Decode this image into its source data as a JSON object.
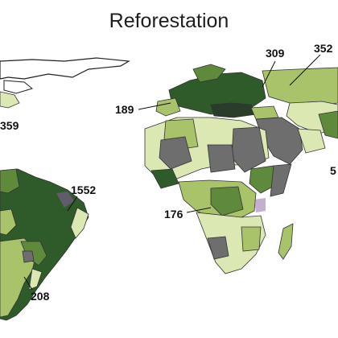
{
  "title": "Reforestation",
  "colors": {
    "light": "#dbe8b4",
    "mid": "#a9c36a",
    "darkgreen": "#5f8a3c",
    "deep": "#2f5a2a",
    "gray": "#6e6e6e",
    "purple": "#8a5fa0"
  },
  "labels": [
    {
      "text": "309"
    },
    {
      "text": "352"
    },
    {
      "text": "189"
    },
    {
      "text": "359"
    },
    {
      "text": "1552"
    },
    {
      "text": "176"
    },
    {
      "text": "208"
    },
    {
      "text": "5"
    }
  ]
}
